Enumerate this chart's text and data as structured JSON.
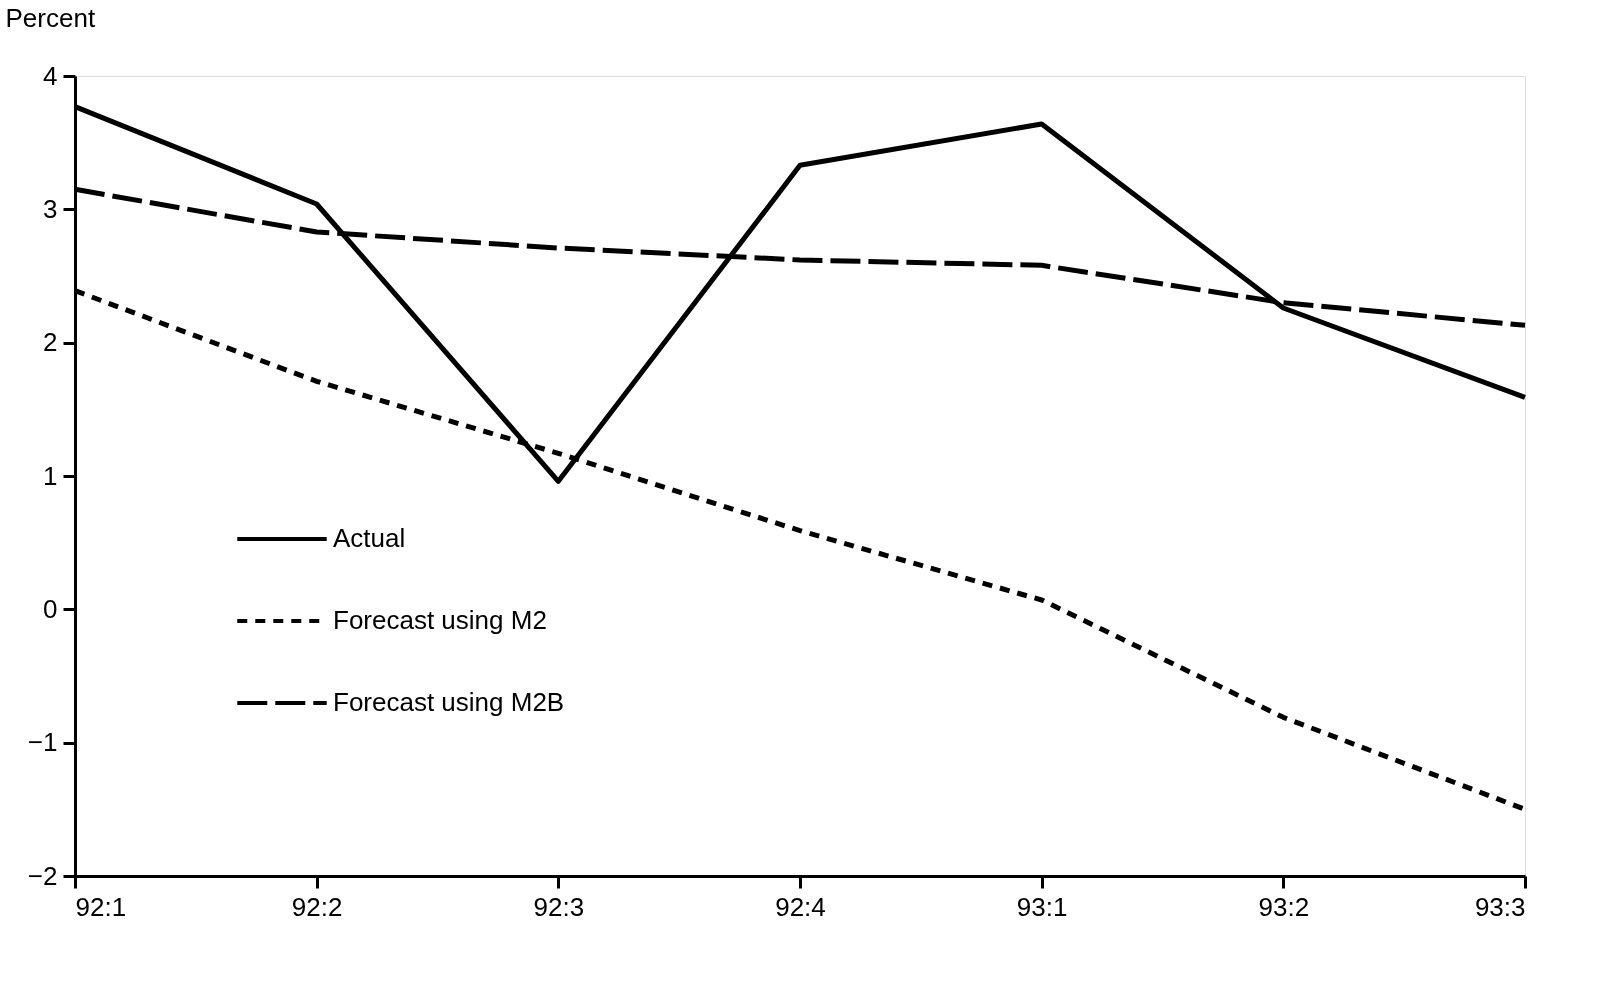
{
  "chart_data": {
    "type": "line",
    "ylabel": "Percent",
    "categories": [
      "92:1",
      "92:2",
      "92:3",
      "92:4",
      "93:1",
      "93:2",
      "93:3"
    ],
    "series": [
      {
        "name": "Actual",
        "color": "#000000",
        "line_style": "solid",
        "values": [
          3.77,
          3.04,
          0.96,
          3.33,
          3.64,
          2.26,
          1.59
        ]
      },
      {
        "name": "Forecast using M2",
        "color": "#000000",
        "line_style": "dotted",
        "values": [
          2.39,
          1.71,
          1.17,
          0.59,
          0.07,
          -0.81,
          -1.5
        ]
      },
      {
        "name": "Forecast using M2B",
        "color": "#000000",
        "line_style": "dashed",
        "values": [
          3.15,
          2.83,
          2.71,
          2.62,
          2.58,
          2.3,
          2.13
        ]
      }
    ],
    "ylim": [
      -2,
      4
    ],
    "yticks": [
      -2,
      -1,
      0,
      1,
      2,
      3,
      4
    ],
    "grid": false,
    "legend": "bottom left",
    "marker": "none"
  }
}
